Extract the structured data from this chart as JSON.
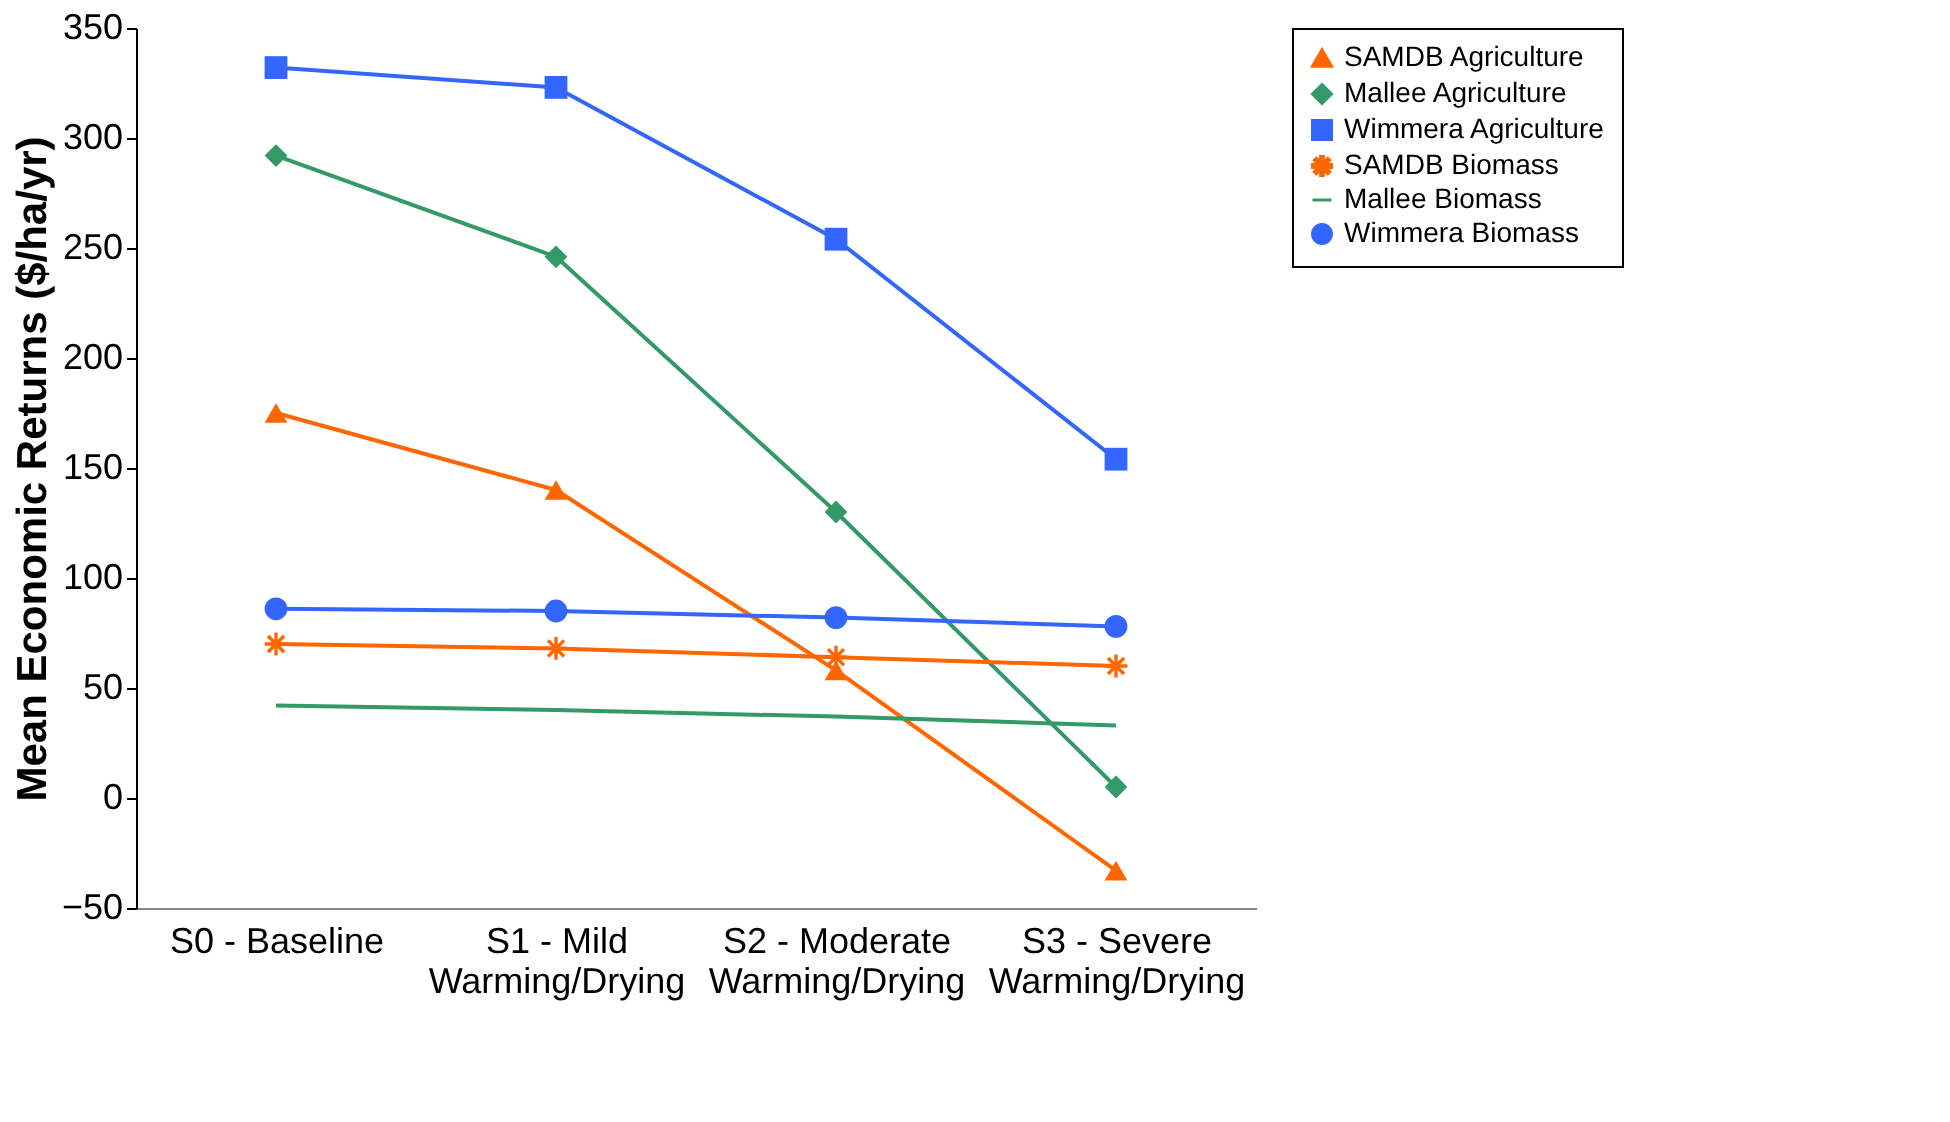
{
  "chart_data": {
    "type": "line",
    "ylabel": "Mean Economic Returns ($/ha/yr)",
    "categories": [
      "S0 - Baseline",
      "S1 - Mild\nWarming/Drying",
      "S2 - Moderate\nWarming/Drying",
      "S3 - Severe\nWarming/Drying"
    ],
    "ylim": [
      -50,
      350
    ],
    "yticks": [
      -50,
      0,
      50,
      100,
      150,
      200,
      250,
      300,
      350
    ],
    "grid": false,
    "legend": "right",
    "series": [
      {
        "name": "SAMDB Agriculture",
        "color": "#ff6600",
        "marker": "triangle",
        "values": [
          175,
          140,
          58,
          -33
        ]
      },
      {
        "name": "Mallee Agriculture",
        "color": "#339966",
        "marker": "diamond",
        "values": [
          292,
          246,
          130,
          5
        ]
      },
      {
        "name": "Wimmera Agriculture",
        "color": "#3366ff",
        "marker": "square",
        "values": [
          332,
          323,
          254,
          154
        ]
      },
      {
        "name": "SAMDB Biomass",
        "color": "#ff6600",
        "marker": "star",
        "values": [
          70,
          68,
          64,
          60
        ]
      },
      {
        "name": "Mallee Biomass",
        "color": "#339966",
        "marker": "none",
        "values": [
          42,
          40,
          37,
          33
        ]
      },
      {
        "name": "Wimmera Biomass",
        "color": "#3366ff",
        "marker": "circle",
        "values": [
          86,
          85,
          82,
          78
        ]
      }
    ]
  }
}
